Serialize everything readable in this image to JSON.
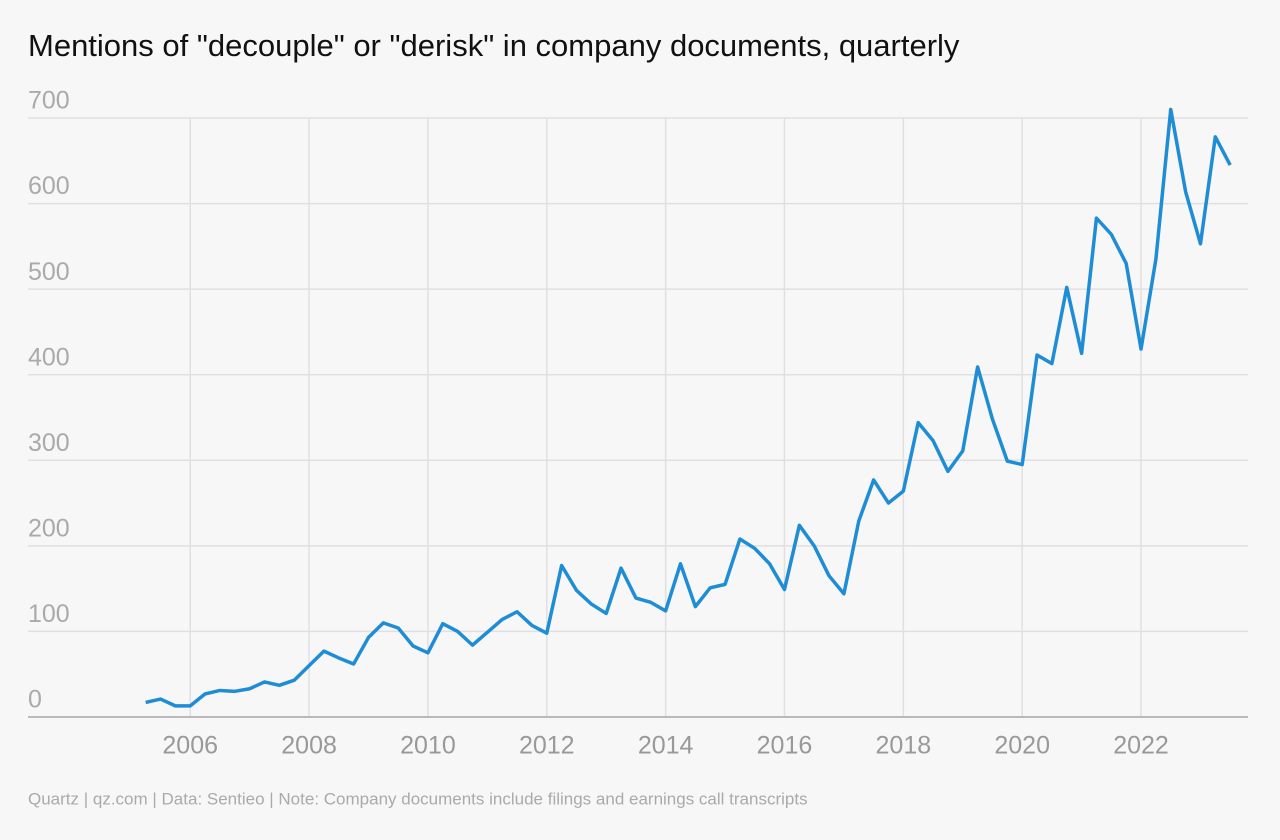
{
  "chart_data": {
    "type": "line",
    "title": "Mentions of \"decouple\" or \"derisk\" in company documents, quarterly",
    "source": "Quartz | qz.com | Data: Sentieo | Note: Company documents include filings and earnings call transcripts",
    "x": [
      2005.25,
      2005.5,
      2005.75,
      2006,
      2006.25,
      2006.5,
      2006.75,
      2007,
      2007.25,
      2007.5,
      2007.75,
      2008,
      2008.25,
      2008.5,
      2008.75,
      2009,
      2009.25,
      2009.5,
      2009.75,
      2010,
      2010.25,
      2010.5,
      2010.75,
      2011,
      2011.25,
      2011.5,
      2011.75,
      2012,
      2012.25,
      2012.5,
      2012.75,
      2013,
      2013.25,
      2013.5,
      2013.75,
      2014,
      2014.25,
      2014.5,
      2014.75,
      2015,
      2015.25,
      2015.5,
      2015.75,
      2016,
      2016.25,
      2016.5,
      2016.75,
      2017,
      2017.25,
      2017.5,
      2017.75,
      2018,
      2018.25,
      2018.5,
      2018.75,
      2019,
      2019.25,
      2019.5,
      2019.75,
      2020,
      2020.25,
      2020.5,
      2020.75,
      2021,
      2021.25,
      2021.5,
      2021.75,
      2022,
      2022.25,
      2022.5,
      2022.75,
      2023,
      2023.25,
      2023.5
    ],
    "series": [
      {
        "color": "#1f8dd6",
        "values": [
          17,
          21,
          13,
          13,
          27,
          31,
          30,
          33,
          41,
          37,
          43,
          60,
          77,
          69,
          62,
          93,
          110,
          104,
          83,
          75,
          109,
          100,
          84,
          99,
          114,
          123,
          107,
          98,
          177,
          148,
          132,
          121,
          174,
          139,
          134,
          124,
          179,
          129,
          151,
          155,
          208,
          197,
          179,
          149,
          224,
          200,
          165,
          144,
          229,
          277,
          250,
          264,
          344,
          323,
          287,
          311,
          409,
          348,
          299,
          295,
          423,
          413,
          502,
          425,
          583,
          564,
          530,
          430,
          535,
          710,
          614,
          553,
          678,
          645
        ]
      }
    ],
    "xlim": [
      2003.27,
      2023.8
    ],
    "xticks": [
      2006,
      2008,
      2010,
      2012,
      2014,
      2016,
      2018,
      2020,
      2022
    ],
    "ylim": [
      0,
      700
    ],
    "yticks": [
      0,
      100,
      200,
      300,
      400,
      500,
      600,
      700
    ],
    "grid": true
  }
}
